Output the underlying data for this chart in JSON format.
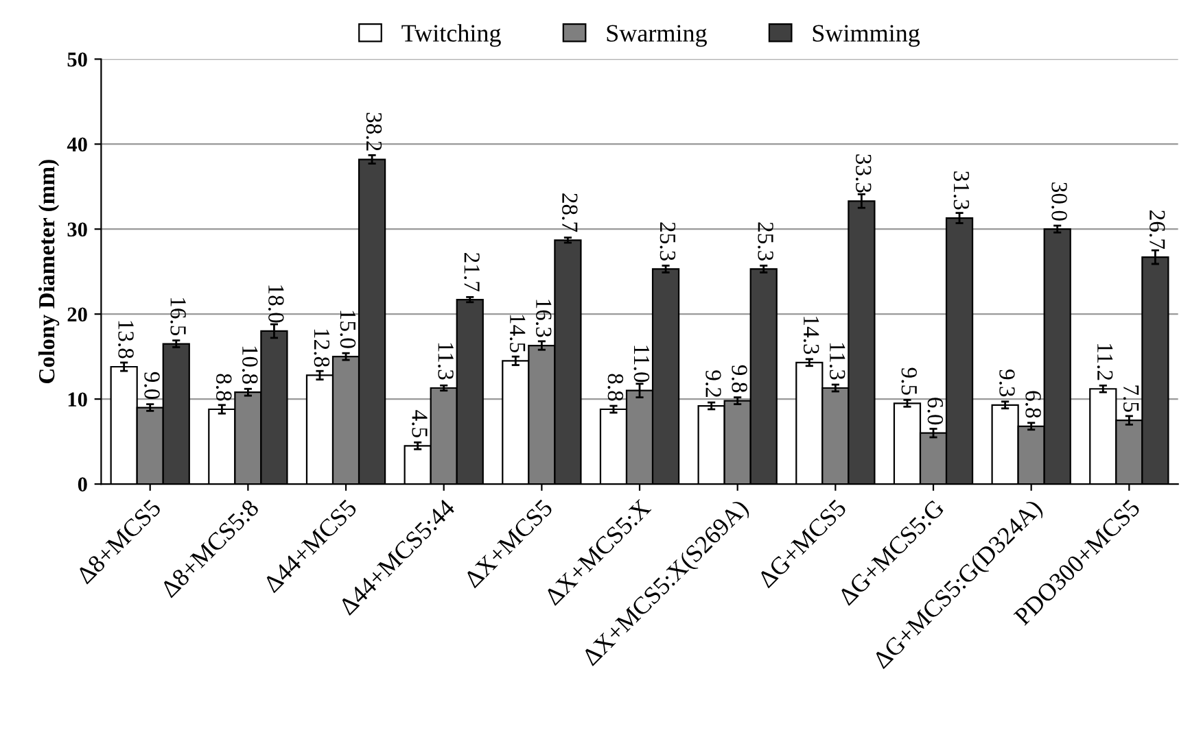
{
  "chart_data": {
    "type": "bar",
    "ylabel": "Colony Diameter (mm)",
    "categories": [
      "Δ8+MCS5",
      "Δ8+MCS5:8",
      "Δ44+MCS5",
      "Δ44+MCS5:44",
      "ΔX+MCS5",
      "ΔX+MCS5:X",
      "ΔX+MCS5:X(S269A)",
      "ΔG+MCS5",
      "ΔG+MCS5:G",
      "ΔG+MCS5:G(D324A)",
      "PDO300+MCS5"
    ],
    "series": [
      {
        "name": "Twitching",
        "color": "#ffffff",
        "values": [
          13.8,
          8.8,
          12.8,
          4.5,
          14.5,
          8.8,
          9.2,
          14.3,
          9.5,
          9.3,
          11.2
        ],
        "errors": [
          0.5,
          0.5,
          0.5,
          0.4,
          0.5,
          0.4,
          0.4,
          0.4,
          0.4,
          0.4,
          0.4
        ],
        "value_labels": [
          "13.8",
          "8.8",
          "12.8",
          "4.5",
          "14.5",
          "8.8",
          "9.2",
          "14.3",
          "9.5",
          "9.3",
          "11.2"
        ]
      },
      {
        "name": "Swarming",
        "color": "#7f7f7f",
        "values": [
          9.0,
          10.8,
          15.0,
          11.3,
          16.3,
          11.0,
          9.8,
          11.3,
          6.0,
          6.8,
          7.5
        ],
        "errors": [
          0.4,
          0.4,
          0.4,
          0.3,
          0.5,
          0.8,
          0.4,
          0.4,
          0.5,
          0.4,
          0.5
        ],
        "value_labels": [
          "9.0",
          "10.8",
          "15.0",
          "11.3",
          "16.3",
          "11.0",
          "9.8",
          "11.3",
          "6.0",
          "6.8",
          "7.5"
        ]
      },
      {
        "name": "Swimming",
        "color": "#404040",
        "values": [
          16.5,
          18.0,
          38.2,
          21.7,
          28.7,
          25.3,
          25.3,
          33.3,
          31.3,
          30.0,
          26.7
        ],
        "errors": [
          0.4,
          0.8,
          0.5,
          0.3,
          0.3,
          0.4,
          0.4,
          0.8,
          0.6,
          0.4,
          0.8
        ],
        "value_labels": [
          "16.5",
          "18.0",
          "38.2",
          "21.7",
          "28.7",
          "25.3",
          "25.3",
          "33.3",
          "31.3",
          "30.0",
          "26.7"
        ]
      }
    ],
    "ylim": [
      0,
      50
    ],
    "yticks": [
      0,
      10,
      20,
      30,
      40,
      50
    ],
    "grid": "y",
    "legend": "top"
  }
}
